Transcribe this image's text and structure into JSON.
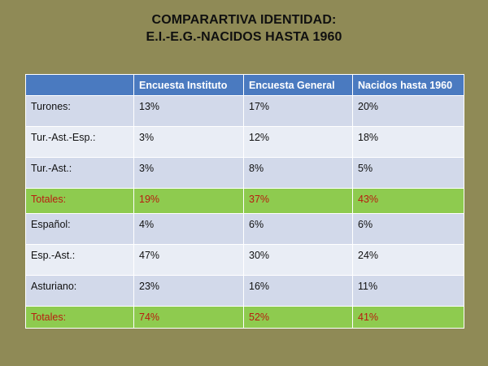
{
  "title": {
    "line1": "COMPARARTIVA IDENTIDAD:",
    "line2": "E.I.-E.G.-NACIDOS HASTA 1960"
  },
  "colors": {
    "background": "#8f8a56",
    "header": "#4a7ac0",
    "row_a": "#d2d9ea",
    "row_b": "#e9edf5",
    "total_row": "#8ecb4f",
    "total_text": "#b81d10"
  },
  "table": {
    "headers": [
      "",
      "Encuesta Instituto",
      "Encuesta General",
      "Nacidos hasta 1960"
    ],
    "rows": [
      {
        "label": "Turones:",
        "values": [
          "13%",
          "17%",
          "20%"
        ]
      },
      {
        "label": "Tur.-Ast.-Esp.:",
        "values": [
          "3%",
          "12%",
          "18%"
        ]
      },
      {
        "label": "Tur.-Ast.:",
        "values": [
          "3%",
          "8%",
          "5%"
        ]
      },
      {
        "label": "Totales:",
        "values": [
          "19%",
          "37%",
          "43%"
        ]
      },
      {
        "label": "Español:",
        "values": [
          "4%",
          "6%",
          "6%"
        ]
      },
      {
        "label": "Esp.-Ast.:",
        "values": [
          "47%",
          "30%",
          "24%"
        ]
      },
      {
        "label": "Asturiano:",
        "values": [
          "23%",
          "16%",
          "11%"
        ]
      },
      {
        "label": "Totales:",
        "values": [
          "74%",
          "52%",
          "41%"
        ]
      }
    ]
  },
  "chart_data": {
    "type": "table",
    "title": "COMPARARTIVA IDENTIDAD: E.I.-E.G.-NACIDOS HASTA 1960",
    "columns": [
      "Encuesta Instituto",
      "Encuesta General",
      "Nacidos hasta 1960"
    ],
    "rows": [
      {
        "label": "Turones:",
        "values": [
          13,
          17,
          20
        ]
      },
      {
        "label": "Tur.-Ast.-Esp.:",
        "values": [
          3,
          12,
          18
        ]
      },
      {
        "label": "Tur.-Ast.:",
        "values": [
          3,
          8,
          5
        ]
      },
      {
        "label": "Totales:",
        "values": [
          19,
          37,
          43
        ]
      },
      {
        "label": "Español:",
        "values": [
          4,
          6,
          6
        ]
      },
      {
        "label": "Esp.-Ast.:",
        "values": [
          47,
          30,
          24
        ]
      },
      {
        "label": "Asturiano:",
        "values": [
          23,
          16,
          11
        ]
      },
      {
        "label": "Totales:",
        "values": [
          74,
          52,
          41
        ]
      }
    ]
  }
}
